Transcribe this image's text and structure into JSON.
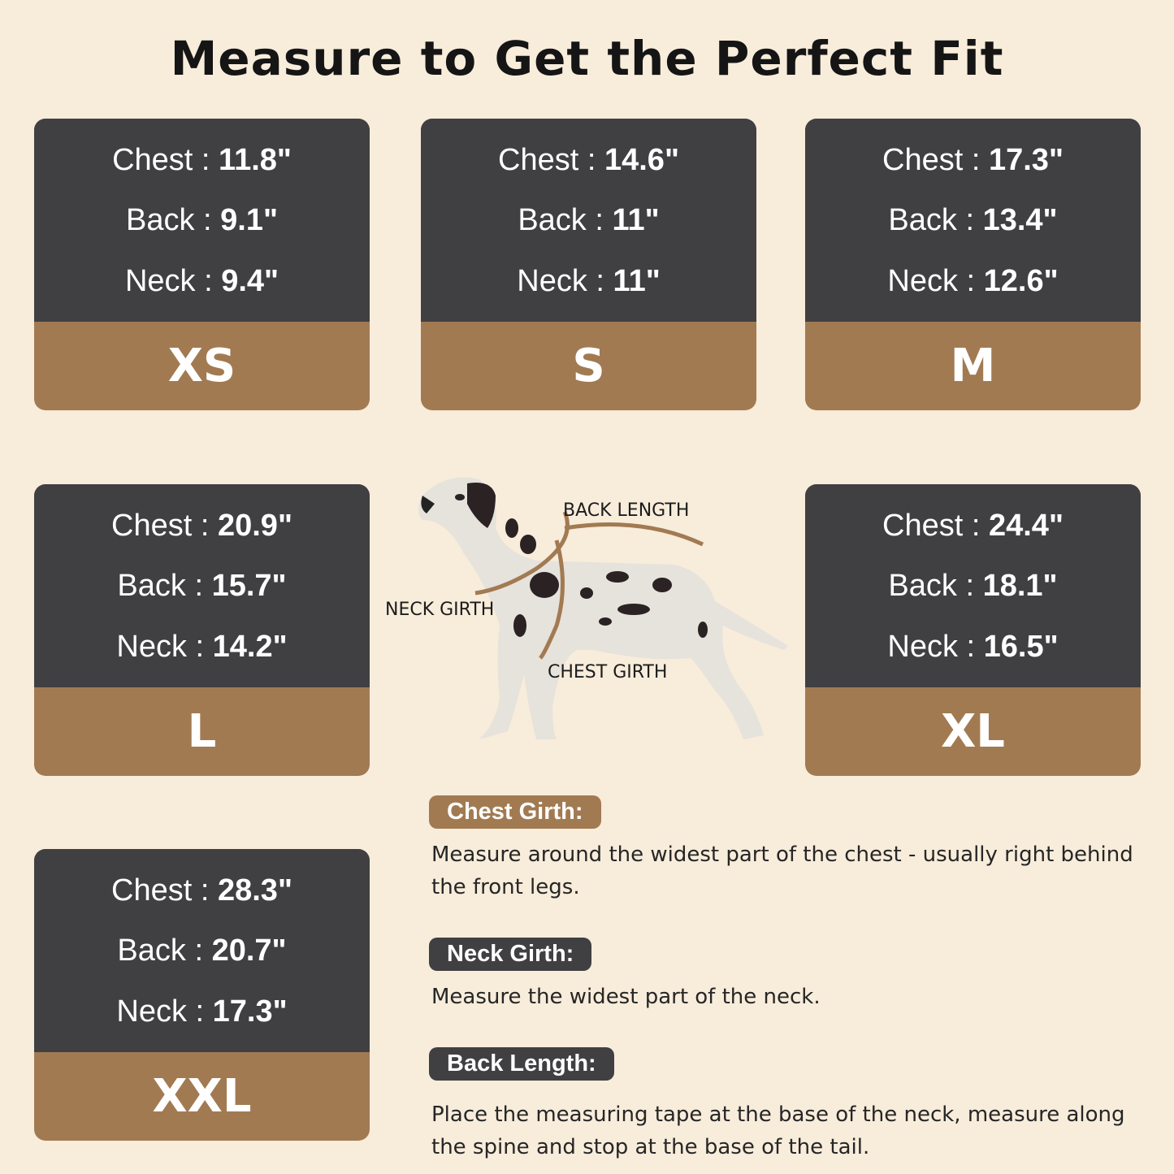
{
  "title": "Measure to Get the Perfect Fit",
  "sizes": [
    {
      "size": "XS",
      "chest_label": "Chest : ",
      "chest": "11.8\"",
      "back_label": "Back : ",
      "back": "9.1\"",
      "neck_label": "Neck : ",
      "neck": "9.4\""
    },
    {
      "size": "S",
      "chest_label": "Chest : ",
      "chest": "14.6\"",
      "back_label": "Back : ",
      "back": "11\"",
      "neck_label": "Neck : ",
      "neck": "11\""
    },
    {
      "size": "M",
      "chest_label": "Chest : ",
      "chest": "17.3\"",
      "back_label": "Back : ",
      "back": "13.4\"",
      "neck_label": "Neck : ",
      "neck": "12.6\""
    },
    {
      "size": "L",
      "chest_label": "Chest : ",
      "chest": "20.9\"",
      "back_label": "Back : ",
      "back": "15.7\"",
      "neck_label": "Neck : ",
      "neck": "14.2\""
    },
    {
      "size": "XL",
      "chest_label": "Chest : ",
      "chest": "24.4\"",
      "back_label": "Back : ",
      "back": "18.1\"",
      "neck_label": "Neck : ",
      "neck": "16.5\""
    },
    {
      "size": "XXL",
      "chest_label": "Chest : ",
      "chest": "28.3\"",
      "back_label": "Back : ",
      "back": "20.7\"",
      "neck_label": "Neck : ",
      "neck": "17.3\""
    }
  ],
  "diagram": {
    "back_length": "BACK LENGTH",
    "neck_girth": "NECK GIRTH",
    "chest_girth": "CHEST GIRTH"
  },
  "instructions": [
    {
      "heading": "Chest Girth:",
      "text": "Measure around the widest part of the chest - usually right behind the front legs."
    },
    {
      "heading": "Neck Girth:",
      "text": "Measure the widest part of the neck."
    },
    {
      "heading": "Back Length:",
      "text": "Place the measuring tape at the base of the neck, measure along the spine and stop at the base of the tail."
    }
  ],
  "colors": {
    "background": "#f8ecdb",
    "card_dark": "#404043",
    "card_brown": "#a27a52"
  }
}
